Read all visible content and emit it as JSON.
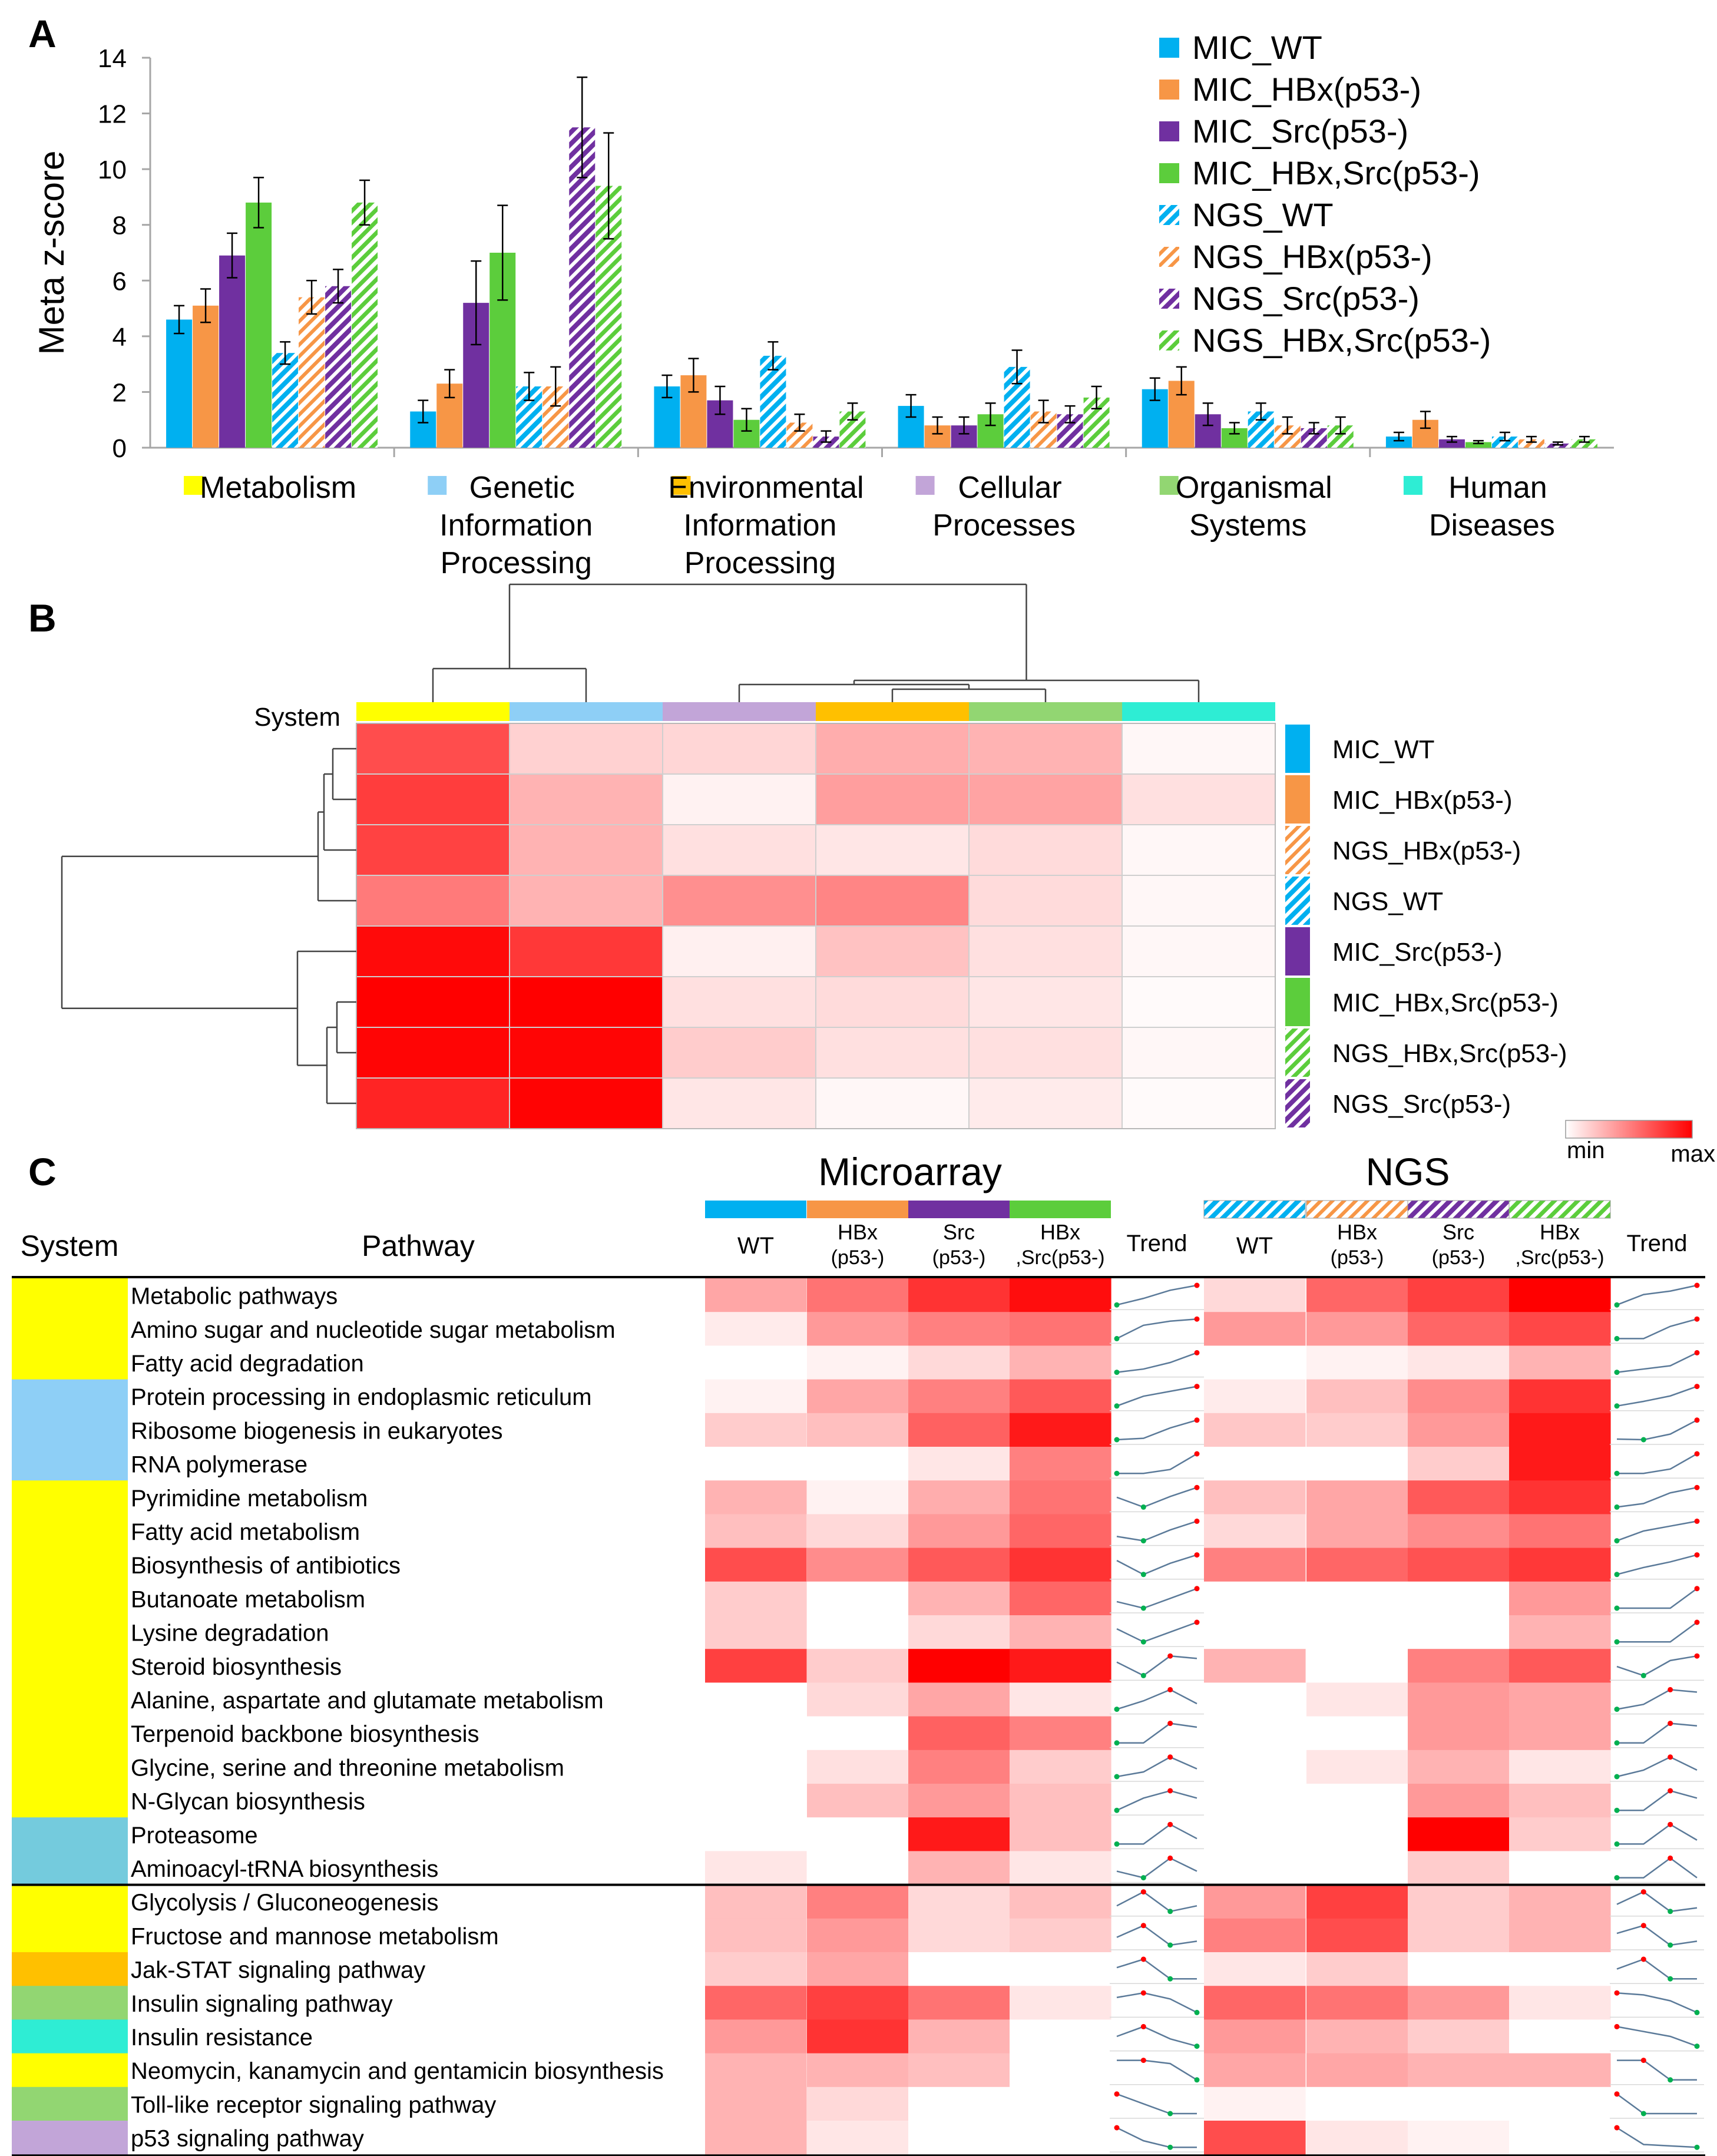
{
  "panel_labels": {
    "a": "A",
    "b": "B",
    "c": "C"
  },
  "colors": {
    "MIC_WT": "#00B0F0",
    "MIC_HBx": "#F79646",
    "MIC_Src": "#7030A0",
    "MIC_HBxSrc": "#5CCD3C",
    "sys_metabolism": "#FFFF00",
    "sys_genetic": "#8ECFF6",
    "sys_environmental": "#FFC000",
    "sys_cellular": "#C2A5D8",
    "sys_organismal": "#92D672",
    "sys_human": "#2EEDD4",
    "sys_genetic_c": "#8ECFF6",
    "sys_teal_c": "#74CBDD",
    "heat_max": "#FF0000",
    "heat_min": "#FFFFFF"
  },
  "chart_data": [
    {
      "type": "bar",
      "panel": "A",
      "title": "",
      "ylabel": "Meta z-score",
      "ylim": [
        0,
        14
      ],
      "yticks": [
        "0",
        "2",
        "4",
        "6",
        "8",
        "10",
        "12",
        "14"
      ],
      "categories": [
        "Metabolism",
        "Genetic Information Processing",
        "Environmental Information Processing",
        "Cellular Processes",
        "Organismal Systems",
        "Human Diseases"
      ],
      "category_labels": [
        [
          "Metabolism"
        ],
        [
          "Genetic",
          "Information",
          "Processing"
        ],
        [
          "Environmental",
          "Information",
          "Processing"
        ],
        [
          "Cellular",
          "Processes"
        ],
        [
          "Organismal",
          "Systems"
        ],
        [
          "Human",
          "Diseases"
        ]
      ],
      "series": [
        {
          "name": "MIC_WT",
          "values": [
            4.6,
            1.3,
            2.2,
            1.5,
            2.1,
            0.4
          ],
          "errors": [
            0.5,
            0.4,
            0.4,
            0.4,
            0.4,
            0.15
          ]
        },
        {
          "name": "MIC_HBx(p53-)",
          "values": [
            5.1,
            2.3,
            2.6,
            0.8,
            2.4,
            1.0
          ],
          "errors": [
            0.6,
            0.5,
            0.6,
            0.3,
            0.5,
            0.3
          ]
        },
        {
          "name": "MIC_Src(p53-)",
          "values": [
            6.9,
            5.2,
            1.7,
            0.8,
            1.2,
            0.3
          ],
          "errors": [
            0.8,
            1.5,
            0.5,
            0.3,
            0.4,
            0.1
          ]
        },
        {
          "name": "MIC_HBx,Src(p53-)",
          "values": [
            8.8,
            7.0,
            1.0,
            1.2,
            0.7,
            0.2
          ],
          "errors": [
            0.9,
            1.7,
            0.4,
            0.4,
            0.2,
            0.05
          ]
        },
        {
          "name": "NGS_WT",
          "values": [
            3.4,
            2.2,
            3.3,
            2.9,
            1.3,
            0.4
          ],
          "errors": [
            0.4,
            0.5,
            0.5,
            0.6,
            0.3,
            0.15
          ]
        },
        {
          "name": "NGS_HBx(p53-)",
          "values": [
            5.4,
            2.2,
            0.9,
            1.3,
            0.8,
            0.3
          ],
          "errors": [
            0.6,
            0.7,
            0.3,
            0.4,
            0.3,
            0.1
          ]
        },
        {
          "name": "NGS_Src(p53-)",
          "values": [
            5.8,
            11.5,
            0.4,
            1.2,
            0.7,
            0.15
          ],
          "errors": [
            0.6,
            1.8,
            0.2,
            0.3,
            0.2,
            0.05
          ]
        },
        {
          "name": "NGS_HBx,Src(p53-)",
          "values": [
            8.8,
            9.4,
            1.3,
            1.8,
            0.8,
            0.3
          ],
          "errors": [
            0.8,
            1.9,
            0.3,
            0.4,
            0.3,
            0.1
          ]
        }
      ],
      "legend": "top-right"
    },
    {
      "type": "heatmap",
      "panel": "B",
      "system_label": "System",
      "columns": [
        "Metabolism",
        "Genetic Information Processing",
        "Cellular Processes",
        "Environmental Information Processing",
        "Organismal Systems",
        "Human Diseases"
      ],
      "rows": [
        "MIC_WT",
        "MIC_HBx(p53-)",
        "NGS_HBx(p53-)",
        "NGS_WT",
        "MIC_Src(p53-)",
        "MIC_HBx,Src(p53-)",
        "NGS_HBx,Src(p53-)",
        "NGS_Src(p53-)"
      ],
      "values": [
        [
          0.7,
          0.18,
          0.16,
          0.32,
          0.3,
          0.03
        ],
        [
          0.76,
          0.3,
          0.05,
          0.38,
          0.36,
          0.12
        ],
        [
          0.74,
          0.3,
          0.12,
          0.1,
          0.14,
          0.03
        ],
        [
          0.52,
          0.3,
          0.44,
          0.48,
          0.14,
          0.03
        ],
        [
          0.96,
          0.78,
          0.06,
          0.24,
          0.12,
          0.03
        ],
        [
          1.0,
          1.0,
          0.12,
          0.14,
          0.1,
          0.02
        ],
        [
          0.98,
          0.98,
          0.2,
          0.12,
          0.12,
          0.03
        ],
        [
          0.86,
          0.99,
          0.1,
          0.03,
          0.08,
          0.02
        ]
      ],
      "colorbar": {
        "min_label": "min",
        "max_label": "max"
      }
    },
    {
      "type": "heatmap",
      "panel": "C",
      "headers": {
        "system": "System",
        "pathway": "Pathway",
        "microarray": "Microarray",
        "ngs": "NGS",
        "trend": "Trend"
      },
      "group_columns": [
        [
          "WT"
        ],
        [
          "HBx",
          "(p53-)"
        ],
        [
          "Src",
          "(p53-)"
        ],
        [
          "HBx",
          ",Src(p53-)"
        ]
      ],
      "pathways": [
        {
          "name": "Metabolic pathways",
          "system": "metabolism",
          "mic": [
            0.35,
            0.55,
            0.8,
            0.95
          ],
          "ngs": [
            0.15,
            0.6,
            0.75,
            1.0
          ]
        },
        {
          "name": "Amino sugar and nucleotide sugar metabolism",
          "system": "metabolism",
          "mic": [
            0.08,
            0.4,
            0.5,
            0.55
          ],
          "ngs": [
            0.4,
            0.4,
            0.6,
            0.72
          ]
        },
        {
          "name": "Fatty acid degradation",
          "system": "metabolism",
          "mic": [
            0.0,
            0.05,
            0.15,
            0.3
          ],
          "ngs": [
            0.0,
            0.05,
            0.1,
            0.3
          ]
        },
        {
          "name": "Protein processing in endoplasmic reticulum",
          "system": "genetic",
          "mic": [
            0.05,
            0.35,
            0.5,
            0.65
          ],
          "ngs": [
            0.08,
            0.25,
            0.45,
            0.8
          ]
        },
        {
          "name": "Ribosome biogenesis in eukaryotes",
          "system": "genetic",
          "mic": [
            0.2,
            0.25,
            0.62,
            0.9
          ],
          "ngs": [
            0.22,
            0.2,
            0.4,
            0.9
          ]
        },
        {
          "name": "RNA polymerase",
          "system": "genetic",
          "mic": [
            0.0,
            0.0,
            0.1,
            0.5
          ],
          "ngs": [
            0.0,
            0.0,
            0.2,
            0.9
          ]
        },
        {
          "name": "Pyrimidine metabolism",
          "system": "metabolism",
          "mic": [
            0.3,
            0.05,
            0.32,
            0.55
          ],
          "ngs": [
            0.25,
            0.35,
            0.65,
            0.8
          ]
        },
        {
          "name": "Fatty acid metabolism",
          "system": "metabolism",
          "mic": [
            0.25,
            0.15,
            0.4,
            0.6
          ],
          "ngs": [
            0.15,
            0.35,
            0.45,
            0.55
          ]
        },
        {
          "name": "Biosynthesis of antibiotics",
          "system": "metabolism",
          "mic": [
            0.7,
            0.45,
            0.65,
            0.8
          ],
          "ngs": [
            0.5,
            0.6,
            0.68,
            0.78
          ]
        },
        {
          "name": "Butanoate metabolism",
          "system": "metabolism",
          "mic": [
            0.2,
            0.0,
            0.3,
            0.6
          ],
          "ngs": [
            0.0,
            0.0,
            0.0,
            0.4
          ]
        },
        {
          "name": "Lysine degradation",
          "system": "metabolism",
          "mic": [
            0.2,
            0.0,
            0.15,
            0.3
          ],
          "ngs": [
            0.0,
            0.0,
            0.0,
            0.3
          ]
        },
        {
          "name": "Steroid biosynthesis",
          "system": "metabolism",
          "mic": [
            0.75,
            0.2,
            1.0,
            0.9
          ],
          "ngs": [
            0.3,
            0.0,
            0.5,
            0.65
          ]
        },
        {
          "name": "Alanine, aspartate and glutamate metabolism",
          "system": "metabolism",
          "mic": [
            0.0,
            0.15,
            0.35,
            0.1
          ],
          "ngs": [
            0.0,
            0.1,
            0.4,
            0.35
          ]
        },
        {
          "name": "Terpenoid backbone biosynthesis",
          "system": "metabolism",
          "mic": [
            0.0,
            0.0,
            0.62,
            0.5
          ],
          "ngs": [
            0.0,
            0.0,
            0.4,
            0.35
          ]
        },
        {
          "name": "Glycine, serine and threonine metabolism",
          "system": "metabolism",
          "mic": [
            0.0,
            0.12,
            0.5,
            0.2
          ],
          "ngs": [
            0.0,
            0.1,
            0.3,
            0.1
          ]
        },
        {
          "name": "N-Glycan biosynthesis",
          "system": "metabolism",
          "mic": [
            0.0,
            0.25,
            0.4,
            0.25
          ],
          "ngs": [
            0.0,
            0.0,
            0.4,
            0.25
          ]
        },
        {
          "name": "Proteasome",
          "system": "teal",
          "mic": [
            0.0,
            0.0,
            0.9,
            0.25
          ],
          "ngs": [
            0.0,
            0.0,
            1.0,
            0.2
          ]
        },
        {
          "name": "Aminoacyl-tRNA biosynthesis",
          "system": "teal",
          "mic": [
            0.1,
            0.0,
            0.3,
            0.1
          ],
          "ngs": [
            0.0,
            0.0,
            0.2,
            0.0
          ]
        },
        {
          "name": "Glycolysis / Gluconeogenesis",
          "system": "metabolism",
          "mic": [
            0.25,
            0.5,
            0.15,
            0.25
          ],
          "ngs": [
            0.4,
            0.75,
            0.2,
            0.3
          ]
        },
        {
          "name": "Fructose and mannose metabolism",
          "system": "metabolism",
          "mic": [
            0.25,
            0.4,
            0.15,
            0.2
          ],
          "ngs": [
            0.5,
            0.7,
            0.2,
            0.3
          ]
        },
        {
          "name": "Jak-STAT signaling pathway",
          "system": "environmental",
          "mic": [
            0.2,
            0.35,
            0.0,
            0.0
          ],
          "ngs": [
            0.1,
            0.2,
            0.0,
            0.0
          ]
        },
        {
          "name": "Insulin signaling pathway",
          "system": "organismal",
          "mic": [
            0.6,
            0.75,
            0.55,
            0.1
          ],
          "ngs": [
            0.6,
            0.55,
            0.4,
            0.1
          ]
        },
        {
          "name": "Insulin resistance",
          "system": "human",
          "mic": [
            0.4,
            0.8,
            0.3,
            0.0
          ],
          "ngs": [
            0.4,
            0.3,
            0.2,
            0.0
          ]
        },
        {
          "name": "Neomycin, kanamycin and gentamicin biosynthesis",
          "system": "metabolism",
          "mic": [
            0.3,
            0.3,
            0.25,
            0.0
          ],
          "ngs": [
            0.35,
            0.35,
            0.3,
            0.3
          ]
        },
        {
          "name": "Toll-like receptor signaling pathway",
          "system": "organismal",
          "mic": [
            0.3,
            0.15,
            0.0,
            0.0
          ],
          "ngs": [
            0.05,
            0.0,
            0.0,
            0.0
          ]
        },
        {
          "name": "p53 signaling pathway",
          "system": "cellular",
          "mic": [
            0.3,
            0.1,
            0.0,
            0.0
          ],
          "ngs": [
            0.7,
            0.1,
            0.05,
            0.0
          ]
        }
      ]
    }
  ]
}
